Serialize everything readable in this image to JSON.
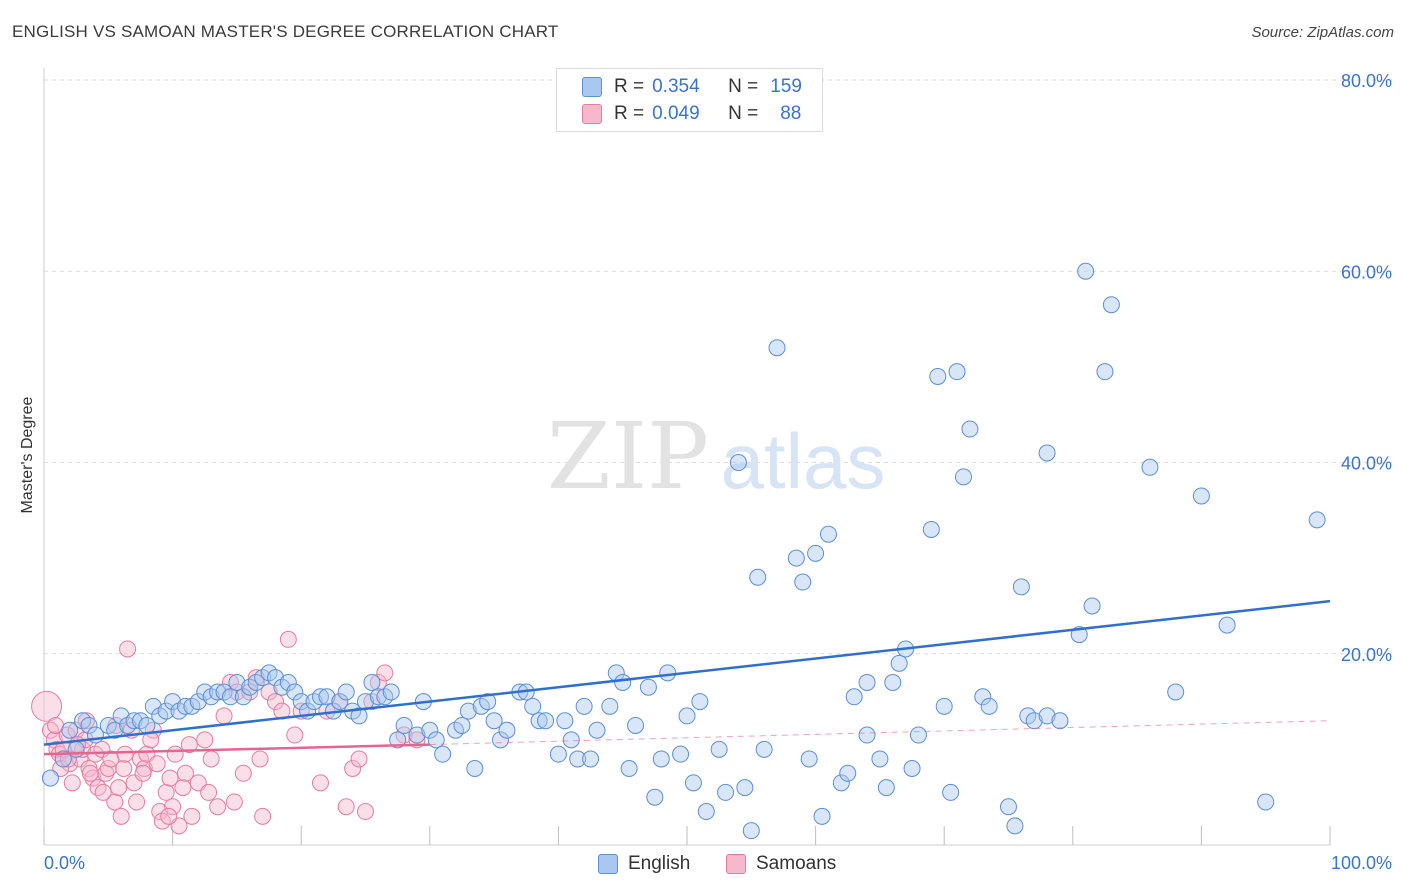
{
  "title": "ENGLISH VS SAMOAN MASTER'S DEGREE CORRELATION CHART",
  "source": "Source: ZipAtlas.com",
  "watermark": {
    "zip": "ZIP",
    "atlas": "atlas"
  },
  "legend": {
    "rows": [
      {
        "r_label": "R =",
        "r_value": "0.354",
        "n_label": "N =",
        "n_value": "159",
        "color": "#a8c8f0"
      },
      {
        "r_label": "R =",
        "r_value": "0.049",
        "n_label": "N =",
        "n_value": "88",
        "color": "#f6b8cb"
      }
    ]
  },
  "bottom_legend": {
    "english": "English",
    "samoans": "Samoans"
  },
  "colors": {
    "english_fill": "#a8c8f0",
    "english_stroke": "#5b8fd6",
    "english_line": "#2f6fd1",
    "samoan_fill": "#f6b8cb",
    "samoan_stroke": "#e87ca0",
    "samoan_line": "#e8638f",
    "tick_text": "#3b74c9"
  },
  "chart_data": {
    "type": "scatter",
    "title": "ENGLISH VS SAMOAN MASTER'S DEGREE CORRELATION CHART",
    "xlabel": "",
    "ylabel": "Master's Degree",
    "xlim": [
      0,
      100
    ],
    "ylim": [
      0,
      80
    ],
    "x_tick_labels": [
      "0.0%",
      "100.0%"
    ],
    "y_ticks": [
      20,
      40,
      60,
      80
    ],
    "y_tick_labels": [
      "20.0%",
      "40.0%",
      "60.0%",
      "80.0%"
    ],
    "grid": true,
    "series": [
      {
        "name": "English",
        "trend": {
          "x": [
            0,
            100
          ],
          "y": [
            10.5,
            25.5
          ]
        },
        "points": [
          [
            0.5,
            7.0
          ],
          [
            1.5,
            9.0
          ],
          [
            2,
            12
          ],
          [
            2.5,
            10
          ],
          [
            3,
            13
          ],
          [
            3.5,
            12.5
          ],
          [
            4,
            11.5
          ],
          [
            5,
            12.5
          ],
          [
            5.5,
            12
          ],
          [
            6,
            13.5
          ],
          [
            6.5,
            12.5
          ],
          [
            7,
            13
          ],
          [
            7.5,
            13
          ],
          [
            8,
            12.5
          ],
          [
            8.5,
            14.5
          ],
          [
            9,
            13.5
          ],
          [
            9.5,
            14
          ],
          [
            10,
            15
          ],
          [
            10.5,
            14
          ],
          [
            11,
            14.5
          ],
          [
            11.5,
            14.5
          ],
          [
            12,
            15
          ],
          [
            12.5,
            16
          ],
          [
            13,
            15.5
          ],
          [
            13.5,
            16
          ],
          [
            14,
            16
          ],
          [
            14.5,
            15.5
          ],
          [
            15,
            17
          ],
          [
            15.5,
            15.5
          ],
          [
            16,
            16.5
          ],
          [
            16.5,
            17
          ],
          [
            17,
            17.5
          ],
          [
            17.5,
            18
          ],
          [
            18,
            17.5
          ],
          [
            18.5,
            16.5
          ],
          [
            19,
            17
          ],
          [
            19.5,
            16
          ],
          [
            20,
            15
          ],
          [
            20.5,
            14
          ],
          [
            21,
            15
          ],
          [
            21.5,
            15.5
          ],
          [
            22,
            15.5
          ],
          [
            22.5,
            14
          ],
          [
            23,
            15
          ],
          [
            23.5,
            16
          ],
          [
            24,
            14
          ],
          [
            24.5,
            13.5
          ],
          [
            25,
            15
          ],
          [
            25.5,
            17
          ],
          [
            26,
            15.5
          ],
          [
            26.5,
            15.5
          ],
          [
            27,
            16
          ],
          [
            27.5,
            11
          ],
          [
            28,
            12.5
          ],
          [
            29,
            11.5
          ],
          [
            29.5,
            15
          ],
          [
            30,
            12
          ],
          [
            30.5,
            11
          ],
          [
            31,
            9.5
          ],
          [
            32,
            12
          ],
          [
            32.5,
            12.5
          ],
          [
            33,
            14
          ],
          [
            33.5,
            8
          ],
          [
            34,
            14.5
          ],
          [
            34.5,
            15
          ],
          [
            35,
            13
          ],
          [
            35.5,
            11
          ],
          [
            36,
            12
          ],
          [
            37,
            16
          ],
          [
            37.5,
            16
          ],
          [
            38,
            14.5
          ],
          [
            38.5,
            13
          ],
          [
            39,
            13
          ],
          [
            40,
            9.5
          ],
          [
            40.5,
            13
          ],
          [
            41,
            11
          ],
          [
            41.5,
            9
          ],
          [
            42,
            14.5
          ],
          [
            42.5,
            9
          ],
          [
            43,
            12
          ],
          [
            44,
            14.5
          ],
          [
            44.5,
            18
          ],
          [
            45,
            17
          ],
          [
            45.5,
            8
          ],
          [
            46,
            12.5
          ],
          [
            47,
            16.5
          ],
          [
            47.5,
            5
          ],
          [
            48,
            9
          ],
          [
            48.5,
            18
          ],
          [
            49.5,
            9.5
          ],
          [
            50,
            13.5
          ],
          [
            50.5,
            6.5
          ],
          [
            51,
            15
          ],
          [
            51.5,
            3.5
          ],
          [
            52.5,
            10
          ],
          [
            53,
            5.5
          ],
          [
            54,
            40
          ],
          [
            54.5,
            6
          ],
          [
            55,
            1.5
          ],
          [
            55.5,
            28
          ],
          [
            56,
            10
          ],
          [
            57,
            52
          ],
          [
            58.5,
            30
          ],
          [
            59,
            27.5
          ],
          [
            59.5,
            9
          ],
          [
            60,
            30.5
          ],
          [
            60.5,
            3
          ],
          [
            61,
            32.5
          ],
          [
            62,
            6.5
          ],
          [
            62.5,
            7.5
          ],
          [
            63,
            15.5
          ],
          [
            64,
            17
          ],
          [
            64,
            11.5
          ],
          [
            65,
            9
          ],
          [
            65.5,
            6
          ],
          [
            66,
            17
          ],
          [
            66.5,
            19
          ],
          [
            67,
            20.5
          ],
          [
            67.5,
            8
          ],
          [
            68,
            11.5
          ],
          [
            69,
            33
          ],
          [
            69.5,
            49
          ],
          [
            70,
            14.5
          ],
          [
            70.5,
            5.5
          ],
          [
            71,
            49.5
          ],
          [
            71.5,
            38.5
          ],
          [
            72,
            43.5
          ],
          [
            73,
            15.5
          ],
          [
            73.5,
            14.5
          ],
          [
            75,
            4
          ],
          [
            75.5,
            2
          ],
          [
            76,
            27
          ],
          [
            76.5,
            13.5
          ],
          [
            77,
            13
          ],
          [
            78,
            41
          ],
          [
            78,
            13.5
          ],
          [
            79,
            13
          ],
          [
            80.5,
            22
          ],
          [
            81,
            60
          ],
          [
            81.5,
            25
          ],
          [
            82.5,
            49.5
          ],
          [
            83,
            56.5
          ],
          [
            86,
            39.5
          ],
          [
            88,
            16
          ],
          [
            90,
            36.5
          ],
          [
            92,
            23
          ],
          [
            95,
            4.5
          ],
          [
            99,
            34
          ]
        ]
      },
      {
        "name": "Samoans",
        "trend": {
          "x": [
            0,
            30
          ],
          "y": [
            9.5,
            10.5
          ]
        },
        "trend_extension": {
          "x": [
            30,
            100
          ],
          "y": [
            10.5,
            13.0
          ]
        },
        "points": [
          [
            0.2,
            14.5
          ],
          [
            0.5,
            12
          ],
          [
            0.8,
            11
          ],
          [
            1,
            10
          ],
          [
            1.2,
            9.5
          ],
          [
            1.5,
            10
          ],
          [
            1.8,
            11.5
          ],
          [
            2,
            8.5
          ],
          [
            2.2,
            6.5
          ],
          [
            2.5,
            12
          ],
          [
            2.8,
            9
          ],
          [
            3,
            10
          ],
          [
            3.2,
            11
          ],
          [
            3.5,
            8
          ],
          [
            3.8,
            7
          ],
          [
            4,
            9.5
          ],
          [
            4.2,
            6
          ],
          [
            4.5,
            10
          ],
          [
            4.8,
            7.5
          ],
          [
            5,
            8
          ],
          [
            5.2,
            9
          ],
          [
            5.5,
            4.5
          ],
          [
            5.8,
            6
          ],
          [
            6,
            3
          ],
          [
            6.2,
            8
          ],
          [
            6.5,
            20.5
          ],
          [
            6.8,
            12
          ],
          [
            7,
            6.5
          ],
          [
            7.2,
            4.5
          ],
          [
            7.5,
            9
          ],
          [
            7.8,
            8
          ],
          [
            8,
            9.5
          ],
          [
            8.5,
            12
          ],
          [
            8.8,
            8.5
          ],
          [
            9,
            3.5
          ],
          [
            9.2,
            2.5
          ],
          [
            9.5,
            5.5
          ],
          [
            9.8,
            7
          ],
          [
            10,
            4
          ],
          [
            10.5,
            2
          ],
          [
            10.8,
            6
          ],
          [
            11,
            7.5
          ],
          [
            11.5,
            3
          ],
          [
            12,
            6.5
          ],
          [
            12.5,
            11
          ],
          [
            13,
            9
          ],
          [
            13.5,
            4
          ],
          [
            14,
            13.5
          ],
          [
            14.5,
            17
          ],
          [
            15,
            16
          ],
          [
            15.5,
            7.5
          ],
          [
            16,
            16
          ],
          [
            16.5,
            17.5
          ],
          [
            17,
            3
          ],
          [
            17.5,
            16
          ],
          [
            18,
            15
          ],
          [
            18.5,
            14
          ],
          [
            19,
            21.5
          ],
          [
            19.5,
            11.5
          ],
          [
            20,
            14
          ],
          [
            21.5,
            6.5
          ],
          [
            22,
            14
          ],
          [
            23,
            15
          ],
          [
            23.5,
            4
          ],
          [
            24,
            8
          ],
          [
            24.5,
            9
          ],
          [
            25,
            3.5
          ],
          [
            25.5,
            15
          ],
          [
            26,
            17
          ],
          [
            26.5,
            18
          ],
          [
            28,
            11.5
          ],
          [
            29,
            11
          ],
          [
            10.2,
            9.5
          ],
          [
            11.3,
            10.5
          ],
          [
            12.8,
            5.5
          ],
          [
            8.3,
            11
          ],
          [
            7.7,
            7.5
          ],
          [
            6.3,
            9.5
          ],
          [
            5.6,
            12.5
          ],
          [
            3.3,
            13
          ],
          [
            2.6,
            10.5
          ],
          [
            1.3,
            8
          ],
          [
            0.9,
            12.5
          ],
          [
            1.9,
            9
          ],
          [
            3.6,
            7.5
          ],
          [
            4.6,
            5.5
          ],
          [
            9.7,
            3
          ],
          [
            14.8,
            4.5
          ],
          [
            16.8,
            9
          ]
        ]
      }
    ]
  }
}
